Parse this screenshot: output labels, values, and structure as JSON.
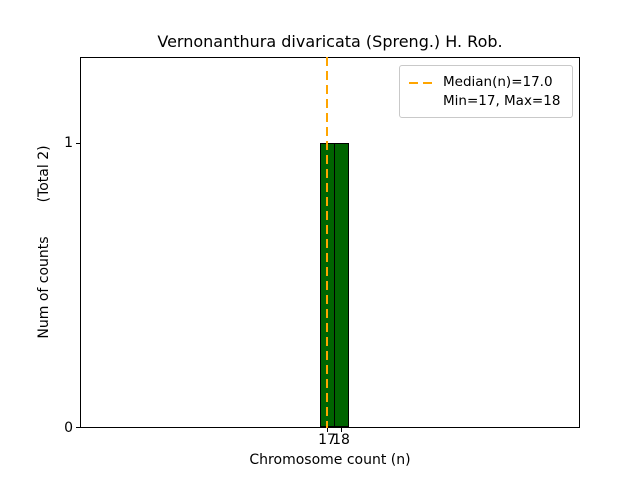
{
  "title": "Vernonanthura divaricata (Spreng.) H. Rob.",
  "axes": {
    "xlabel": "Chromosome count (n)",
    "ylabel": "Num of counts",
    "ylabel_total": "(Total 2)",
    "xticks": [
      "17",
      "18"
    ],
    "yticks": [
      "0",
      "1"
    ]
  },
  "legend": {
    "median_label": "Median(n)=17.0",
    "minmax_label": "Min=17, Max=18"
  },
  "colors": {
    "bar_fill": "#006400",
    "bar_edge": "#000000",
    "median_line": "#FFA500",
    "axis": "#000000"
  },
  "chart_data": {
    "type": "bar",
    "title": "Vernonanthura divaricata (Spreng.) H. Rob.",
    "categories": [
      17,
      18
    ],
    "values": [
      1,
      1
    ],
    "xlabel": "Chromosome count (n)",
    "ylabel": "Num of counts (Total 2)",
    "total_counts": 2,
    "median": 17.0,
    "min": 17,
    "max": 18,
    "ylim": [
      0,
      1.3
    ],
    "yticks": [
      0,
      1
    ],
    "grid": false,
    "legend_position": "upper right",
    "median_line_style": "dashed-orange-vertical"
  }
}
